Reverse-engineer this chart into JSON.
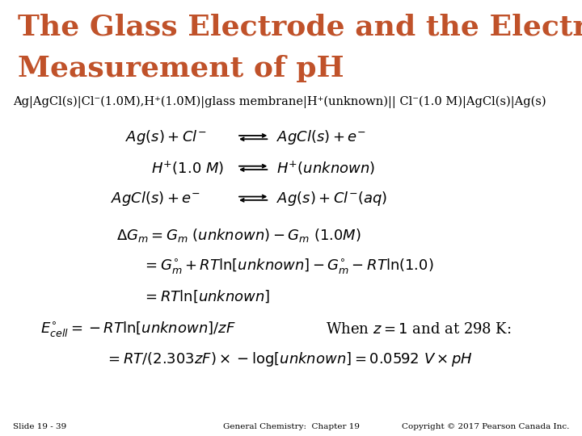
{
  "background_color": "#ffffff",
  "title_line1": "The Glass Electrode and the Electrochemical",
  "title_line2": "Measurement of pH",
  "title_color": "#C0522A",
  "title_fontsize": 26,
  "subtitle": "Ag|AgCl(s)|Cl⁻(1.0M),H⁺(1.0M)|glass membrane|H⁺(unknown)|| Cl⁻(1.0 M)|AgCl(s)|Ag(s)",
  "subtitle_fontsize": 10.5,
  "body_fontsize": 13,
  "footer_left": "Slide 19 - 39",
  "footer_center": "General Chemistry:  Chapter 19",
  "footer_right": "Copyright © 2017 Pearson Canada Inc.",
  "footer_fontsize": 7.5,
  "text_color": "#000000",
  "title_color2": "#C8601A"
}
